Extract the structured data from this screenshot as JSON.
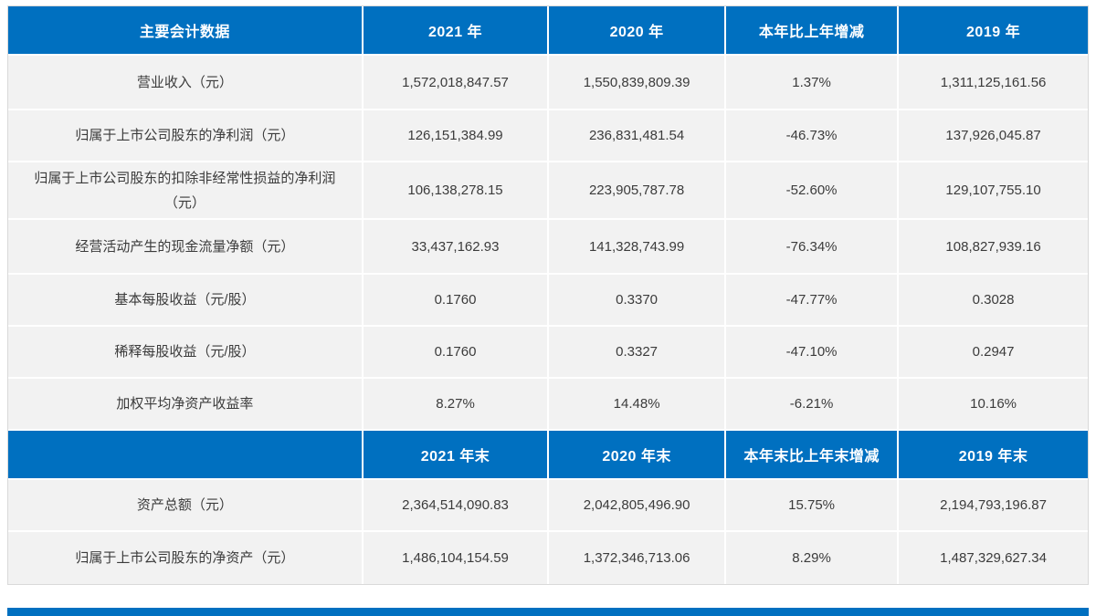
{
  "colors": {
    "header_bg": "#0070c0",
    "header_text": "#ffffff",
    "row_bg": "#f2f2f2",
    "body_text": "#3b3b3b",
    "grid_line": "#ffffff",
    "outer_border": "#d9d9d9"
  },
  "table": {
    "sections": [
      {
        "columns": [
          "主要会计数据",
          "2021 年",
          "2020 年",
          "本年比上年增减",
          "2019 年"
        ],
        "rows": [
          {
            "label": "营业收入（元）",
            "values": [
              "1,572,018,847.57",
              "1,550,839,809.39",
              "1.37%",
              "1,311,125,161.56"
            ]
          },
          {
            "label": "归属于上市公司股东的净利润（元）",
            "values": [
              "126,151,384.99",
              "236,831,481.54",
              "-46.73%",
              "137,926,045.87"
            ]
          },
          {
            "label": "归属于上市公司股东的扣除非经常性损益的净利润（元）",
            "values": [
              "106,138,278.15",
              "223,905,787.78",
              "-52.60%",
              "129,107,755.10"
            ]
          },
          {
            "label": "经营活动产生的现金流量净额（元）",
            "values": [
              "33,437,162.93",
              "141,328,743.99",
              "-76.34%",
              "108,827,939.16"
            ]
          },
          {
            "label": "基本每股收益（元/股）",
            "values": [
              "0.1760",
              "0.3370",
              "-47.77%",
              "0.3028"
            ]
          },
          {
            "label": "稀释每股收益（元/股）",
            "values": [
              "0.1760",
              "0.3327",
              "-47.10%",
              "0.2947"
            ]
          },
          {
            "label": "加权平均净资产收益率",
            "values": [
              "8.27%",
              "14.48%",
              "-6.21%",
              "10.16%"
            ]
          }
        ]
      },
      {
        "columns": [
          "",
          "2021 年末",
          "2020 年末",
          "本年末比上年末增减",
          "2019 年末"
        ],
        "rows": [
          {
            "label": "资产总额（元）",
            "values": [
              "2,364,514,090.83",
              "2,042,805,496.90",
              "15.75%",
              "2,194,793,196.87"
            ]
          },
          {
            "label": "归属于上市公司股东的净资产（元）",
            "values": [
              "1,486,104,154.59",
              "1,372,346,713.06",
              "8.29%",
              "1,487,329,627.34"
            ]
          }
        ]
      }
    ]
  }
}
